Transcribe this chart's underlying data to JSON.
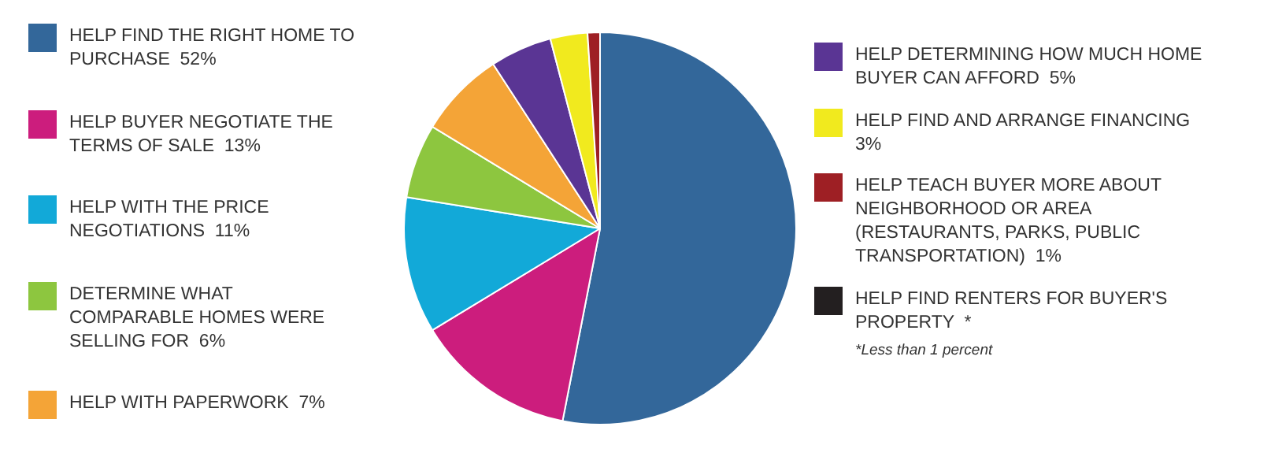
{
  "chart_data": {
    "type": "pie",
    "categories": [
      "HELP FIND THE RIGHT HOME TO PURCHASE",
      "HELP BUYER NEGOTIATE THE TERMS OF SALE",
      "HELP WITH THE PRICE NEGOTIATIONS",
      "DETERMINE WHAT COMPARABLE HOMES WERE SELLING FOR",
      "HELP WITH PAPERWORK",
      "HELP DETERMINING HOW MUCH HOME BUYER CAN AFFORD",
      "HELP FIND AND ARRANGE FINANCING",
      "HELP TEACH BUYER MORE ABOUT NEIGHBORHOOD OR AREA (RESTAURANTS, PARKS, PUBLIC TRANSPORTATION)",
      "HELP FIND RENTERS FOR BUYER'S PROPERTY"
    ],
    "values": [
      52,
      13,
      11,
      6,
      7,
      5,
      3,
      1,
      null
    ],
    "value_labels": [
      "52%",
      "13%",
      "11%",
      "6%",
      "7%",
      "5%",
      "3%",
      "1%",
      "*"
    ],
    "colors": [
      "#33679a",
      "#cc1d7d",
      "#12a9d8",
      "#8dc63f",
      "#f4a437",
      "#5a3594",
      "#f1ea1e",
      "#9e1f24",
      "#231f20"
    ],
    "legend": "left",
    "annotations": [
      "*Less than 1 percent"
    ]
  }
}
